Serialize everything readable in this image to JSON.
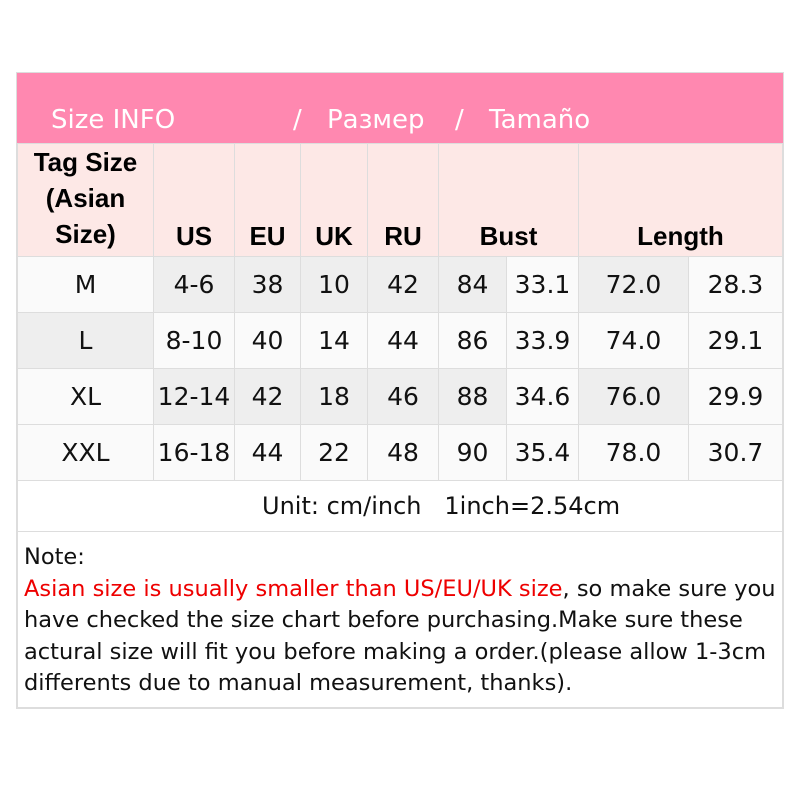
{
  "title": {
    "en": "Size INFO",
    "sep1": "/",
    "ru": "Размер",
    "sep2": "/",
    "es": "Tamaño"
  },
  "headers": [
    "Tag Size (Asian Size)",
    "US",
    "EU",
    "UK",
    "RU",
    "Bust",
    "Length"
  ],
  "rows": [
    [
      "M",
      "4-6",
      "38",
      "10",
      "42",
      "84",
      "33.1",
      "72.0",
      "28.3"
    ],
    [
      "L",
      "8-10",
      "40",
      "14",
      "44",
      "86",
      "33.9",
      "74.0",
      "29.1"
    ],
    [
      "XL",
      "12-14",
      "42",
      "18",
      "46",
      "88",
      "34.6",
      "76.0",
      "29.9"
    ],
    [
      "XXL",
      "16-18",
      "44",
      "22",
      "48",
      "90",
      "35.4",
      "78.0",
      "30.7"
    ]
  ],
  "unit": "Unit: cm/inch   1inch=2.54cm",
  "note": {
    "label": "Note:",
    "highlight": "Asian size is usually smaller than US/EU/UK size",
    "rest": ", so make sure you have checked the size chart before purchasing.Make sure these actural size will fit you before making a order.(please allow 1-3cm differents due to manual measurement, thanks)."
  },
  "colors": {
    "header_pink": "#ff88b0",
    "subheader_pink": "#fde8e6",
    "highlight_red": "#e00000"
  }
}
